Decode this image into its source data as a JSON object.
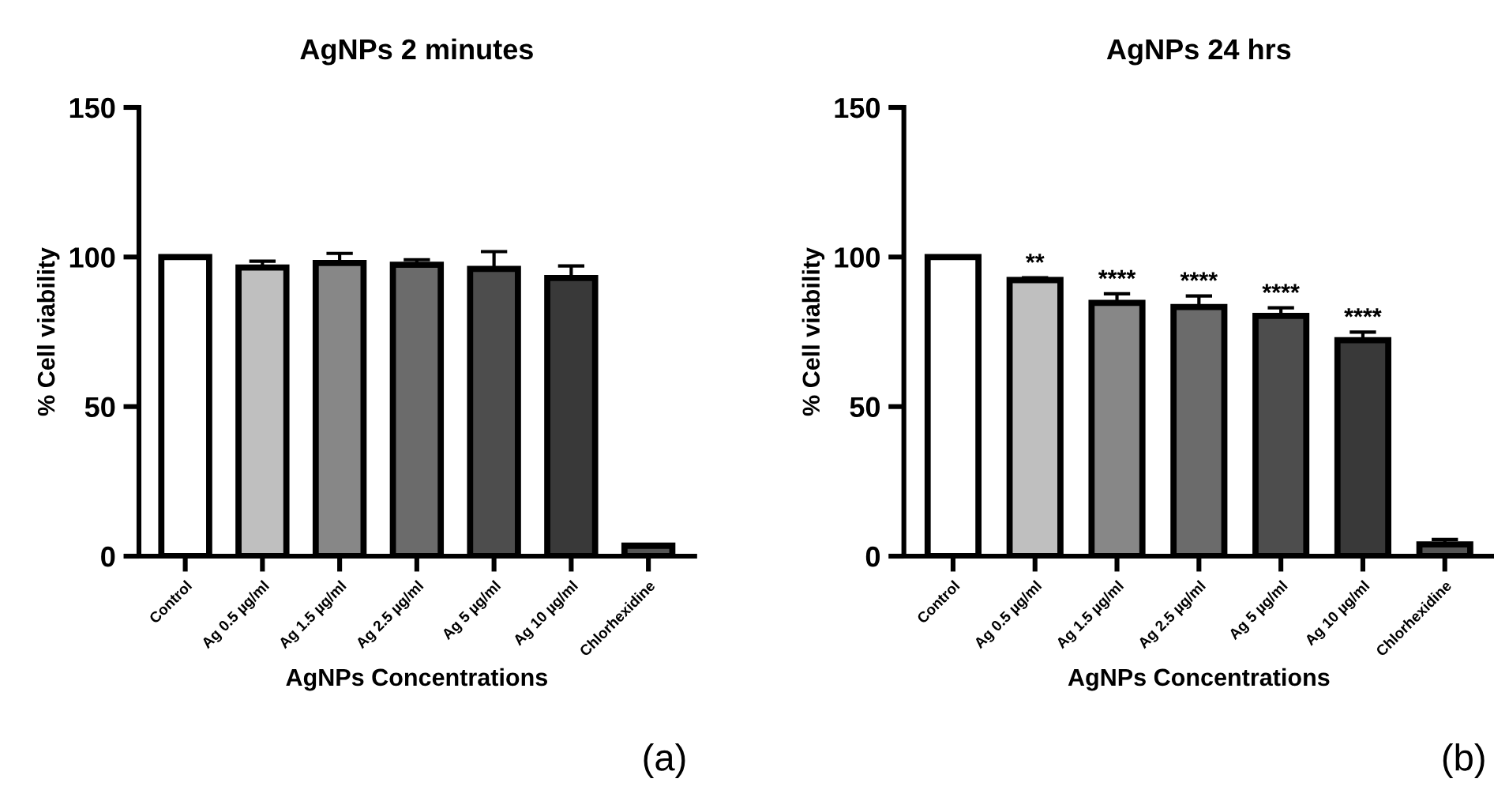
{
  "chart_data": [
    {
      "type": "bar",
      "title": "AgNPs 2 minutes",
      "xlabel": "AgNPs Concentrations",
      "ylabel": "% Cell viability",
      "categories": [
        "Control",
        "Ag 0.5 µg/ml",
        "Ag 1.5 µg/ml",
        "Ag 2.5 µg/ml",
        "Ag 5 µg/ml",
        "Ag 10 µg/ml",
        "Chlorhexidine"
      ],
      "values": [
        100,
        96.5,
        98,
        97.4,
        96,
        93,
        3.5
      ],
      "errors": [
        0,
        2.1,
        3.2,
        1.7,
        5.8,
        4,
        0.4
      ],
      "colors": [
        "#ffffff",
        "#bfbfbf",
        "#878787",
        "#6b6b6b",
        "#4d4d4d",
        "#393939",
        "#555555"
      ],
      "ylim": [
        0,
        150
      ],
      "yticks": [
        0,
        50,
        100,
        150
      ],
      "grid": false,
      "legend": false,
      "annotations": [
        "(a)"
      ]
    },
    {
      "type": "bar",
      "title": "AgNPs 24 hrs",
      "xlabel": "AgNPs Concentrations",
      "ylabel": "% Cell viability",
      "categories": [
        "Control",
        "Ag 0.5 µg/ml",
        "Ag 1.5 µg/ml",
        "Ag 2.5 µg/ml",
        "Ag 5 µg/ml",
        "Ag 10 µg/ml",
        "Chlorhexidine"
      ],
      "values": [
        100,
        92.3,
        84.7,
        83.3,
        80.3,
        72.2,
        3.9
      ],
      "errors": [
        0,
        0.8,
        3,
        3.7,
        2.7,
        2.7,
        1.7
      ],
      "colors": [
        "#ffffff",
        "#bfbfbf",
        "#878787",
        "#6b6b6b",
        "#4d4d4d",
        "#393939",
        "#555555"
      ],
      "ylim": [
        0,
        150
      ],
      "yticks": [
        0,
        50,
        100,
        150
      ],
      "grid": false,
      "legend": false,
      "annotations": [
        {
          "text": "**",
          "x": "Ag 0.5 µg/ml",
          "y": 93.1
        },
        {
          "text": "****",
          "x": "Ag 1.5 µg/ml",
          "y": 87.7
        },
        {
          "text": "****",
          "x": "Ag 2.5 µg/ml",
          "y": 87
        },
        {
          "text": "****",
          "x": "Ag 5 µg/ml",
          "y": 83
        },
        {
          "text": "****",
          "x": "Ag 10 µg/ml",
          "y": 74.9
        },
        "(b)"
      ]
    }
  ]
}
